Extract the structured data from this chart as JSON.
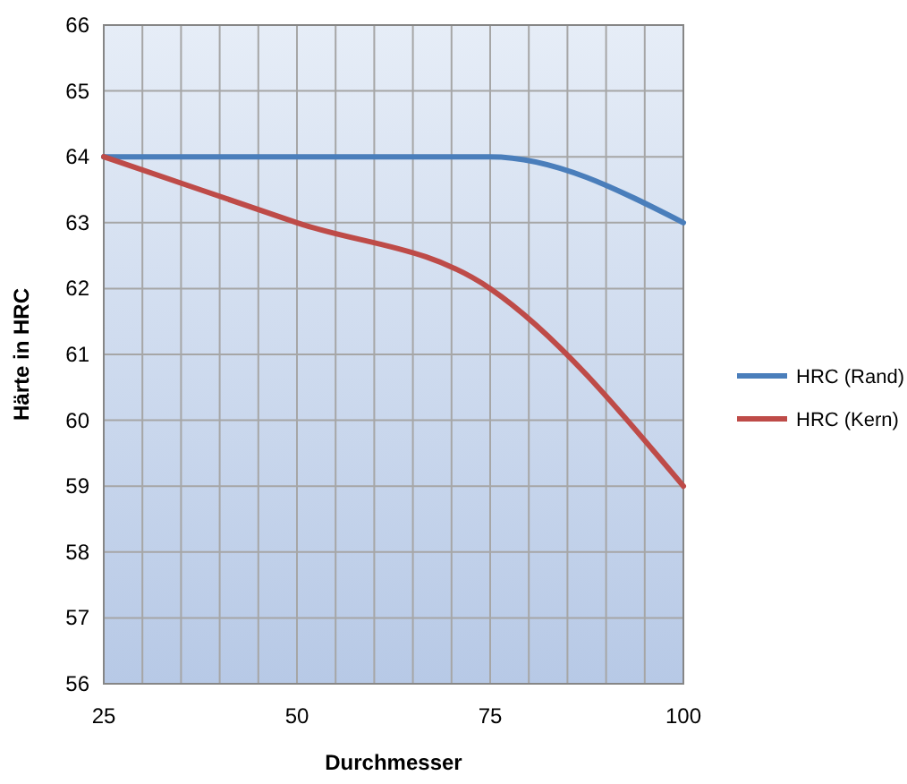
{
  "chart_data": {
    "type": "line",
    "xlabel": "Durchmesser",
    "ylabel": "Härte in HRC",
    "x": [
      25,
      50,
      75,
      100
    ],
    "series": [
      {
        "name": "HRC (Rand)",
        "color": "#4a7ebb",
        "values": [
          64,
          64,
          64,
          63
        ]
      },
      {
        "name": "HRC (Kern)",
        "color": "#be4b48",
        "values": [
          64,
          63,
          62,
          59
        ]
      }
    ],
    "xlim": [
      25,
      100
    ],
    "xticks": [
      25,
      {
        "value": 30,
        "label": null
      },
      {
        "value": 35,
        "label": null
      },
      {
        "value": 40,
        "label": null
      },
      {
        "value": 45,
        "label": null
      },
      50,
      {
        "value": 55,
        "label": null
      },
      {
        "value": 60,
        "label": null
      },
      {
        "value": 65,
        "label": null
      },
      {
        "value": 70,
        "label": null
      },
      75,
      {
        "value": 80,
        "label": null
      },
      {
        "value": 85,
        "label": null
      },
      {
        "value": 90,
        "label": null
      },
      {
        "value": 95,
        "label": null
      },
      100
    ],
    "ylim": [
      56,
      66
    ],
    "yticks": [
      56,
      57,
      58,
      59,
      60,
      61,
      62,
      63,
      64,
      65,
      66
    ],
    "grid": true,
    "legend": "right",
    "marker": "none",
    "line_style": "solid"
  }
}
